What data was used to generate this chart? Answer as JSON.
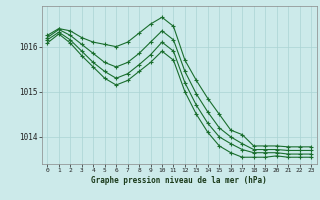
{
  "title": "Graphe pression niveau de la mer (hPa)",
  "bg_color": "#cceaea",
  "grid_color": "#aad4d4",
  "line_color": "#1a6e2e",
  "xlim": [
    -0.5,
    23.5
  ],
  "ylim": [
    1013.4,
    1016.9
  ],
  "yticks": [
    1014,
    1015,
    1016
  ],
  "xticks": [
    0,
    1,
    2,
    3,
    4,
    5,
    6,
    7,
    8,
    9,
    10,
    11,
    12,
    13,
    14,
    15,
    16,
    17,
    18,
    19,
    20,
    21,
    22,
    23
  ],
  "series": [
    [
      1016.25,
      1016.4,
      1016.35,
      1016.2,
      1016.1,
      1016.05,
      1016.0,
      1016.1,
      1016.3,
      1016.5,
      1016.65,
      1016.45,
      1015.7,
      1015.25,
      1014.85,
      1014.5,
      1014.15,
      1014.05,
      1013.8,
      1013.8,
      1013.8,
      1013.78,
      1013.78,
      1013.78
    ],
    [
      1016.2,
      1016.38,
      1016.25,
      1016.05,
      1015.85,
      1015.65,
      1015.55,
      1015.65,
      1015.85,
      1016.1,
      1016.35,
      1016.15,
      1015.45,
      1014.95,
      1014.55,
      1014.2,
      1014.0,
      1013.85,
      1013.72,
      1013.72,
      1013.72,
      1013.7,
      1013.7,
      1013.7
    ],
    [
      1016.15,
      1016.32,
      1016.15,
      1015.9,
      1015.65,
      1015.45,
      1015.3,
      1015.4,
      1015.6,
      1015.82,
      1016.1,
      1015.9,
      1015.2,
      1014.7,
      1014.3,
      1014.0,
      1013.85,
      1013.72,
      1013.65,
      1013.65,
      1013.65,
      1013.62,
      1013.62,
      1013.62
    ],
    [
      1016.08,
      1016.28,
      1016.08,
      1015.8,
      1015.55,
      1015.3,
      1015.15,
      1015.25,
      1015.45,
      1015.65,
      1015.9,
      1015.7,
      1015.0,
      1014.5,
      1014.1,
      1013.8,
      1013.65,
      1013.55,
      1013.55,
      1013.55,
      1013.58,
      1013.55,
      1013.55,
      1013.55
    ]
  ]
}
